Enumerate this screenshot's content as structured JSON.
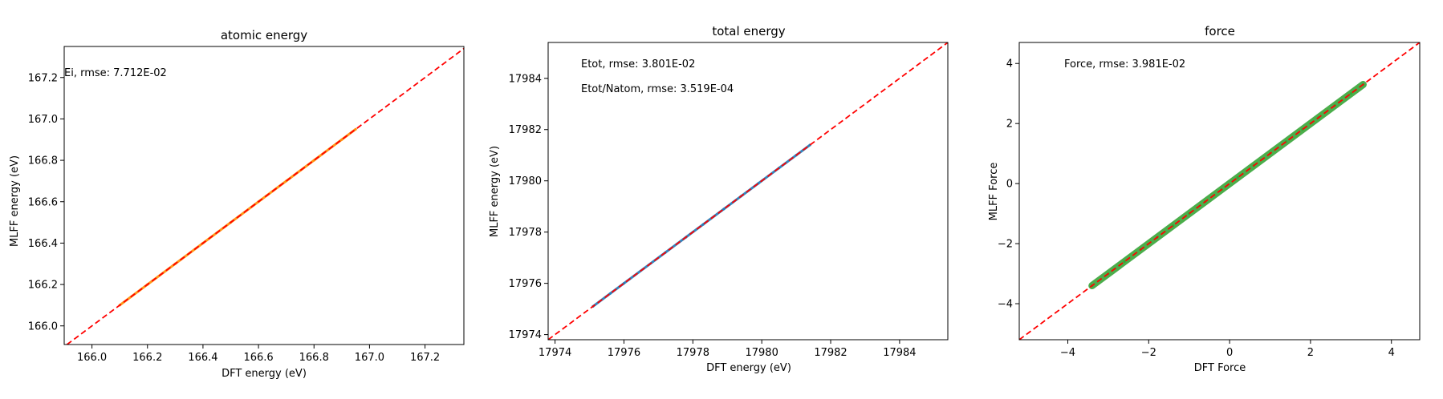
{
  "chart_data": [
    {
      "type": "scatter",
      "title": "atomic energy",
      "xlabel": "DFT energy (eV)",
      "ylabel": "MLFF energy (eV)",
      "xlim": [
        165.9,
        167.34
      ],
      "ylim": [
        165.91,
        167.35
      ],
      "xticks": [
        166.0,
        166.2,
        166.4,
        166.6,
        166.8,
        167.0,
        167.2
      ],
      "yticks": [
        166.0,
        166.2,
        166.4,
        166.6,
        166.8,
        167.0,
        167.2
      ],
      "tick_decimals": 1,
      "annotations": [
        "Ei, rmse: 7.712E-02"
      ],
      "point_color": "#ff8c00",
      "diagonal_color": "#ff0000",
      "points_x": [
        166.1,
        166.2,
        166.3,
        166.4,
        166.5,
        166.6,
        166.7,
        166.8,
        166.9,
        166.95
      ],
      "points_y": [
        166.1,
        166.2,
        166.3,
        166.4,
        166.5,
        166.6,
        166.7,
        166.8,
        166.9,
        166.95
      ],
      "grid": false
    },
    {
      "type": "scatter",
      "title": "total energy",
      "xlabel": "DFT energy (eV)",
      "ylabel": "MLFF energy (eV)",
      "xlim": [
        17973.8,
        17985.4
      ],
      "ylim": [
        17973.8,
        17985.4
      ],
      "xticks": [
        17974,
        17976,
        17978,
        17980,
        17982,
        17984
      ],
      "yticks": [
        17974,
        17976,
        17978,
        17980,
        17982,
        17984
      ],
      "tick_decimals": 0,
      "annotations": [
        "Etot, rmse: 3.801E-02",
        "Etot/Natom, rmse: 3.519E-04"
      ],
      "point_color": "#1f77b4",
      "diagonal_color": "#ff0000",
      "points_x": [
        17975.1,
        17975.6,
        17976.0,
        17977.2,
        17977.8,
        17978.3,
        17978.9,
        17979.4,
        17979.9,
        17980.5,
        17981.0,
        17981.4
      ],
      "points_y": [
        17975.1,
        17975.6,
        17976.0,
        17977.2,
        17977.8,
        17978.3,
        17978.9,
        17979.4,
        17979.9,
        17980.5,
        17981.0,
        17981.4
      ],
      "grid": false
    },
    {
      "type": "scatter",
      "title": "force",
      "xlabel": "DFT Force",
      "ylabel": "MLFF Force",
      "xlim": [
        -5.2,
        4.7
      ],
      "ylim": [
        -5.2,
        4.7
      ],
      "xticks": [
        -4,
        -2,
        0,
        2,
        4
      ],
      "yticks": [
        -4,
        -2,
        0,
        2,
        4
      ],
      "tick_decimals": 0,
      "annotations": [
        "Force, rmse: 3.981E-02"
      ],
      "point_color": "#2ca02c",
      "diagonal_color": "#ff0000",
      "points_x": [
        -3.4,
        -3.0,
        -2.6,
        -2.2,
        -1.8,
        -1.4,
        -1.0,
        -0.6,
        -0.2,
        0.2,
        0.6,
        1.0,
        1.4,
        1.8,
        2.2,
        2.6,
        3.0,
        3.3
      ],
      "points_y": [
        -3.4,
        -3.0,
        -2.6,
        -2.2,
        -1.8,
        -1.4,
        -1.0,
        -0.6,
        -0.2,
        0.2,
        0.6,
        1.0,
        1.4,
        1.8,
        2.2,
        2.6,
        3.0,
        3.3
      ],
      "grid": false
    }
  ]
}
